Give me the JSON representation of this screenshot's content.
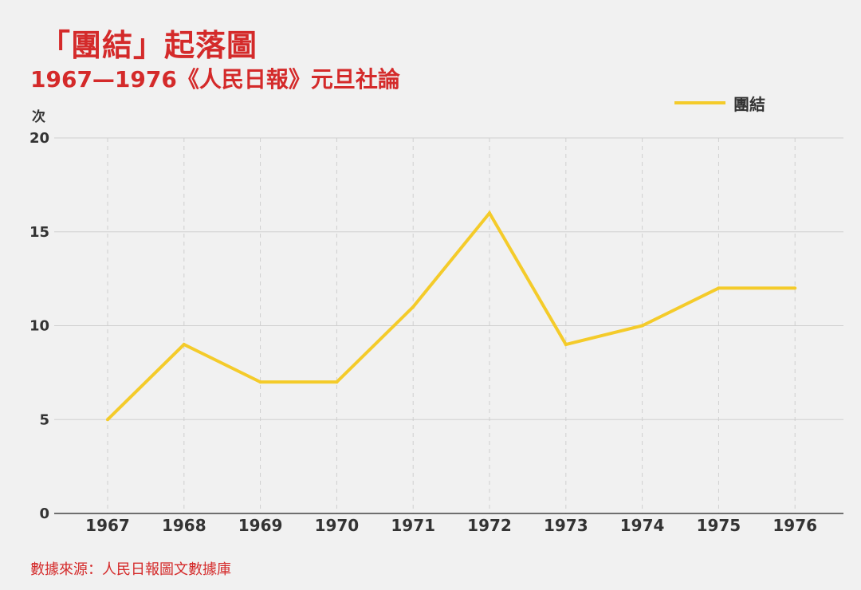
{
  "title": "「團結」起落圖",
  "subtitle": "1967—1976《人民日報》元旦社論",
  "source": "數據來源：人民日報圖文數據庫",
  "colors": {
    "title": "#d42a2a",
    "line": "#f4cb2a",
    "background": "#f1f1f1",
    "grid": "#cfcfcf",
    "axis": "#444444"
  },
  "chart_data": {
    "type": "line",
    "categories": [
      "1967",
      "1968",
      "1969",
      "1970",
      "1971",
      "1972",
      "1973",
      "1974",
      "1975",
      "1976"
    ],
    "series": [
      {
        "name": "團結",
        "values": [
          5,
          9,
          7,
          7,
          11,
          16,
          9,
          10,
          12,
          12
        ]
      }
    ],
    "ylabel": "次",
    "ylim": [
      0,
      20
    ],
    "yticks": [
      0,
      5,
      10,
      15,
      20
    ],
    "grid": true,
    "legend": "top-right"
  }
}
